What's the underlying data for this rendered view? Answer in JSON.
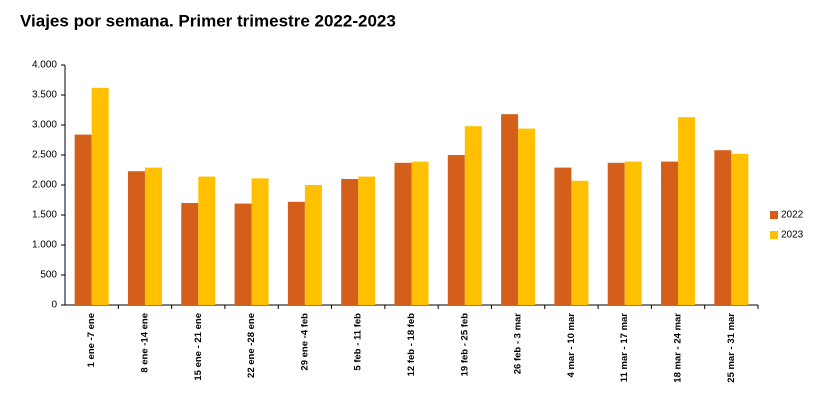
{
  "chart_data": {
    "type": "bar",
    "title": "Viajes por semana. Primer trimestre 2022-2023",
    "categories": [
      "1 ene -7 ene",
      "8 ene -14 ene",
      "15 ene - 21 ene",
      "22 ene -28 ene",
      "29 ene -4 feb",
      "5 feb - 11 feb",
      "12 feb - 18 feb",
      "19 feb - 25 feb",
      "26 feb - 3 mar",
      "4 mar - 10 mar",
      "11 mar - 17 mar",
      "18 mar - 24 mar",
      "25 mar - 31 mar"
    ],
    "series": [
      {
        "name": "2022",
        "color": "#d45f1a",
        "values": [
          2840,
          2230,
          1700,
          1690,
          1720,
          2100,
          2370,
          2500,
          3180,
          2290,
          2370,
          2390,
          2580
        ]
      },
      {
        "name": "2023",
        "color": "#ffc000",
        "values": [
          3620,
          2290,
          2140,
          2110,
          2000,
          2140,
          2390,
          2980,
          2940,
          2070,
          2390,
          3130,
          2520
        ]
      }
    ],
    "ylim": [
      0,
      4000
    ],
    "yticks": [
      0,
      500,
      {
        "value": 1000,
        "label": "1.000"
      },
      {
        "value": 1500,
        "label": "1.500"
      },
      {
        "value": 2000,
        "label": "2.000"
      },
      {
        "value": 2500,
        "label": "2.500"
      },
      {
        "value": 3000,
        "label": "3.000"
      },
      {
        "value": 3500,
        "label": "3.500"
      },
      {
        "value": 4000,
        "label": "4.000"
      }
    ],
    "grid": false,
    "legend": "right"
  }
}
